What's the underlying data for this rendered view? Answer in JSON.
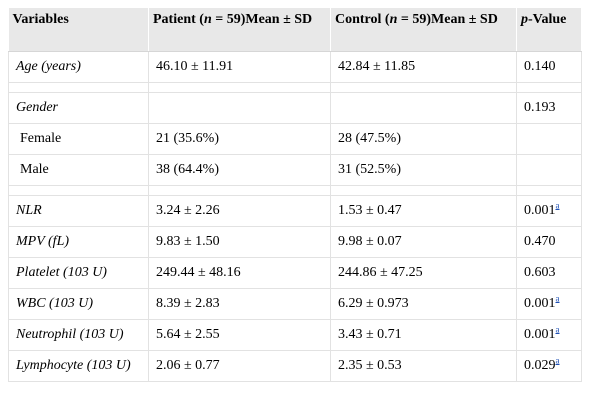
{
  "table": {
    "headers": {
      "variables": "Variables",
      "patient_prefix": "Patient (",
      "patient_n": "n",
      "patient_suffix": " = 59)Mean ± SD",
      "control_prefix": "Control (",
      "control_n": "n",
      "control_suffix": " = 59)Mean ± SD",
      "p_label": "p",
      "p_suffix": "-Value"
    },
    "rows": [
      {
        "variable": "Age (years)",
        "patient": "46.10 ± 11.91",
        "control": "42.84 ± 11.85",
        "p": "0.140",
        "sup": ""
      },
      {
        "variable": "Gender",
        "patient": "",
        "control": "",
        "p": "0.193",
        "sup": ""
      },
      {
        "variable": "Female",
        "patient": "21 (35.6%)",
        "control": "28 (47.5%)",
        "p": "",
        "sup": ""
      },
      {
        "variable": "Male",
        "patient": "38 (64.4%)",
        "control": "31 (52.5%)",
        "p": "",
        "sup": ""
      },
      {
        "variable": "NLR",
        "patient": "3.24 ± 2.26",
        "control": "1.53 ± 0.47",
        "p": "0.001",
        "sup": "a"
      },
      {
        "variable": "MPV (fL)",
        "patient": "9.83 ± 1.50",
        "control": "9.98 ± 0.07",
        "p": "0.470",
        "sup": ""
      },
      {
        "variable": "Platelet (103 U)",
        "patient": "249.44 ± 48.16",
        "control": "244.86 ± 47.25",
        "p": "0.603",
        "sup": ""
      },
      {
        "variable": "WBC (103 U)",
        "patient": "8.39 ± 2.83",
        "control": "6.29 ± 0.973",
        "p": "0.001",
        "sup": "a"
      },
      {
        "variable": "Neutrophil (103 U)",
        "patient": "5.64 ± 2.55",
        "control": "3.43 ± 0.71",
        "p": "0.001",
        "sup": "a"
      },
      {
        "variable": "Lymphocyte (103 U)",
        "patient": "2.06 ± 0.77",
        "control": "2.35 ± 0.53",
        "p": "0.029",
        "sup": "a"
      }
    ]
  }
}
